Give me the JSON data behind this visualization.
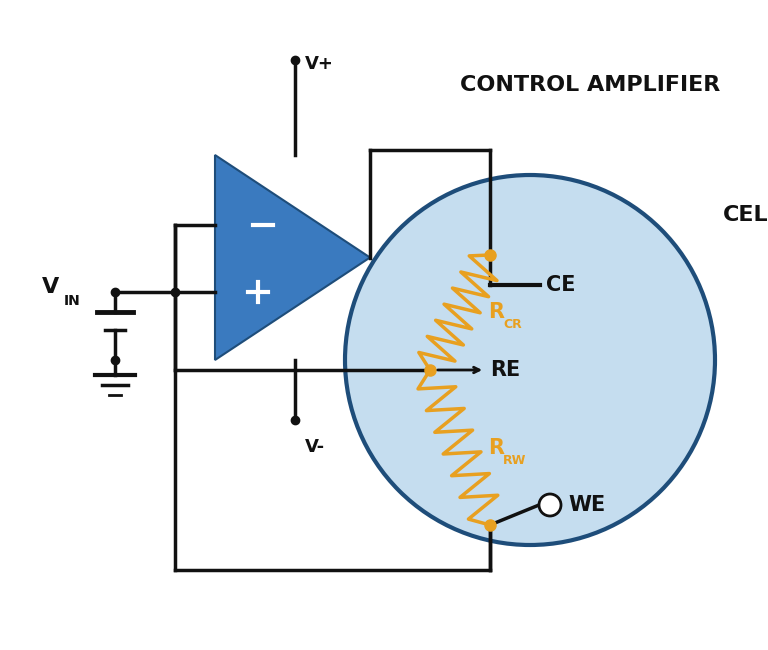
{
  "bg_color": "#ffffff",
  "cell_circle_color": "#c5ddef",
  "cell_circle_edge": "#1e4d7a",
  "opamp_color": "#3a7abf",
  "opamp_edge": "#1e4d7a",
  "wire_color": "#111111",
  "resistor_color": "#e8a020",
  "dot_color": "#e8a020",
  "label_color": "#111111",
  "resistor_label_color": "#e8a020",
  "title": "CONTROL AMPLIFIER",
  "cell_label": "CELL",
  "ce_label": "CE",
  "re_label": "RE",
  "we_label": "WE",
  "rcr_label": "R",
  "rcr_sub": "CR",
  "rrw_label": "R",
  "rrw_sub": "RW",
  "vplus_label": "V+",
  "vminus_label": "V-",
  "vin_label": "V",
  "vin_sub": "IN",
  "wire_lw": 2.5,
  "resistor_lw": 2.5,
  "cell_lw": 3.0,
  "amp_lw": 1.5
}
